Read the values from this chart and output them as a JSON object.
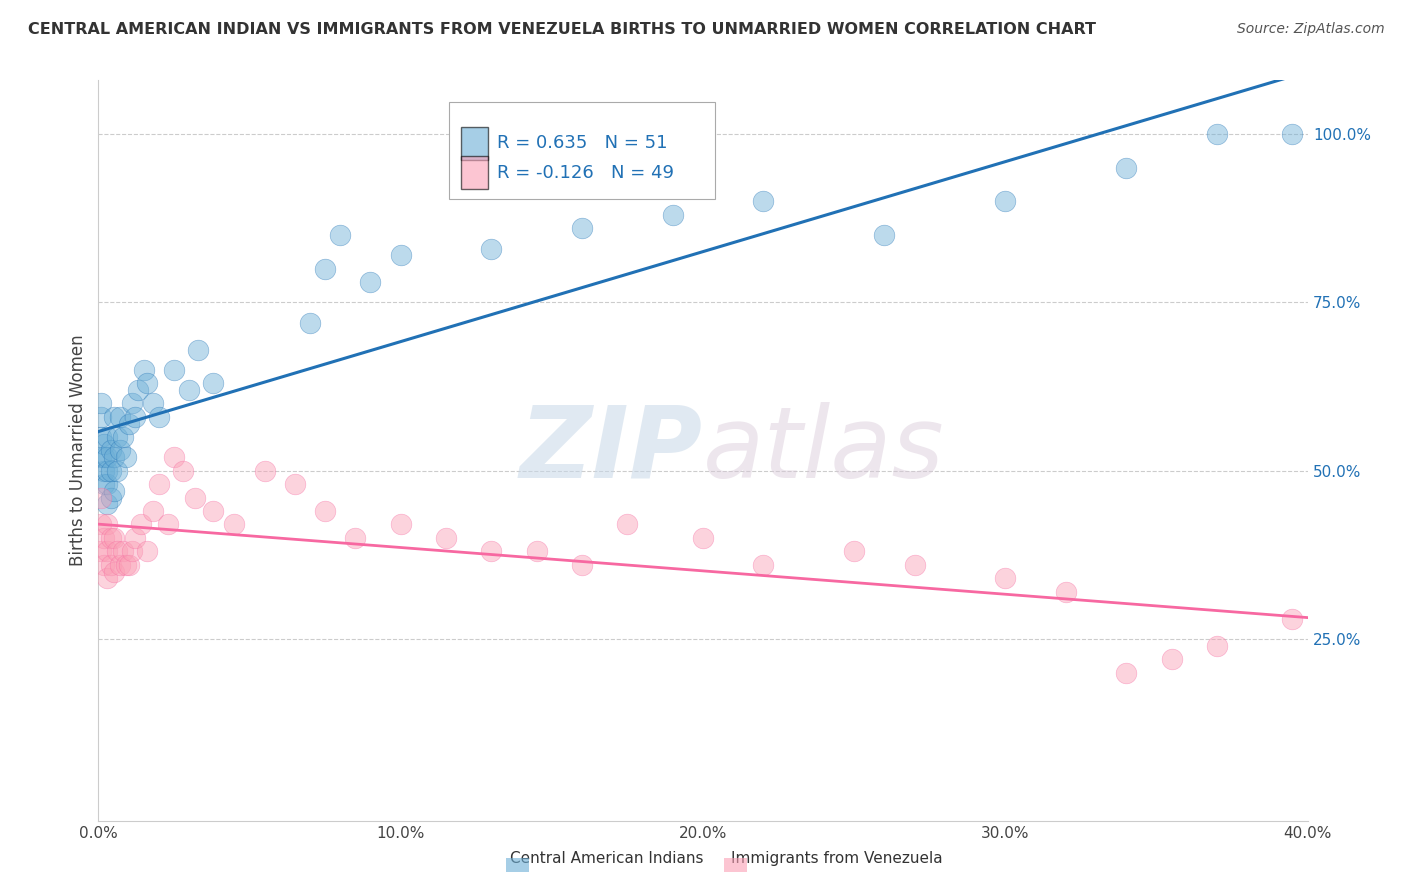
{
  "title": "CENTRAL AMERICAN INDIAN VS IMMIGRANTS FROM VENEZUELA BIRTHS TO UNMARRIED WOMEN CORRELATION CHART",
  "source": "Source: ZipAtlas.com",
  "ylabel": "Births to Unmarried Women",
  "xlim": [
    0.0,
    0.4
  ],
  "ylim": [
    -0.02,
    1.08
  ],
  "xtick_labels": [
    "0.0%",
    "10.0%",
    "20.0%",
    "30.0%",
    "40.0%"
  ],
  "xtick_vals": [
    0.0,
    0.1,
    0.2,
    0.3,
    0.4
  ],
  "ytick_labels_right": [
    "25.0%",
    "50.0%",
    "75.0%",
    "100.0%"
  ],
  "ytick_vals_right": [
    0.25,
    0.5,
    0.75,
    1.0
  ],
  "blue_color": "#6BAED6",
  "pink_color": "#FA9FB5",
  "blue_line_color": "#2171B5",
  "pink_line_color": "#F768A1",
  "legend_R_blue": "0.635",
  "legend_N_blue": "51",
  "legend_R_pink": "-0.126",
  "legend_N_pink": "49",
  "legend_label_blue": "Central American Indians",
  "legend_label_pink": "Immigrants from Venezuela",
  "watermark_zip": "ZIP",
  "watermark_atlas": "atlas",
  "blue_x": [
    0.001,
    0.001,
    0.001,
    0.001,
    0.002,
    0.002,
    0.002,
    0.002,
    0.003,
    0.003,
    0.003,
    0.003,
    0.003,
    0.004,
    0.004,
    0.004,
    0.005,
    0.005,
    0.005,
    0.006,
    0.006,
    0.007,
    0.007,
    0.008,
    0.009,
    0.01,
    0.011,
    0.012,
    0.013,
    0.015,
    0.016,
    0.018,
    0.02,
    0.025,
    0.03,
    0.033,
    0.038,
    0.07,
    0.075,
    0.08,
    0.09,
    0.1,
    0.13,
    0.16,
    0.19,
    0.22,
    0.26,
    0.3,
    0.34,
    0.37,
    0.395
  ],
  "blue_y": [
    0.52,
    0.55,
    0.58,
    0.6,
    0.48,
    0.5,
    0.52,
    0.54,
    0.45,
    0.48,
    0.5,
    0.52,
    0.55,
    0.46,
    0.5,
    0.53,
    0.47,
    0.52,
    0.58,
    0.5,
    0.55,
    0.53,
    0.58,
    0.55,
    0.52,
    0.57,
    0.6,
    0.58,
    0.62,
    0.65,
    0.63,
    0.6,
    0.58,
    0.65,
    0.62,
    0.68,
    0.63,
    0.72,
    0.8,
    0.85,
    0.78,
    0.82,
    0.83,
    0.86,
    0.88,
    0.9,
    0.85,
    0.9,
    0.95,
    1.0,
    1.0
  ],
  "pink_x": [
    0.001,
    0.001,
    0.001,
    0.002,
    0.002,
    0.003,
    0.003,
    0.003,
    0.004,
    0.004,
    0.005,
    0.005,
    0.006,
    0.007,
    0.008,
    0.009,
    0.01,
    0.011,
    0.012,
    0.014,
    0.016,
    0.018,
    0.02,
    0.023,
    0.025,
    0.028,
    0.032,
    0.038,
    0.045,
    0.055,
    0.065,
    0.075,
    0.085,
    0.1,
    0.115,
    0.13,
    0.145,
    0.16,
    0.175,
    0.2,
    0.22,
    0.25,
    0.27,
    0.3,
    0.32,
    0.34,
    0.355,
    0.37,
    0.395
  ],
  "pink_y": [
    0.38,
    0.42,
    0.46,
    0.36,
    0.4,
    0.34,
    0.38,
    0.42,
    0.36,
    0.4,
    0.35,
    0.4,
    0.38,
    0.36,
    0.38,
    0.36,
    0.36,
    0.38,
    0.4,
    0.42,
    0.38,
    0.44,
    0.48,
    0.42,
    0.52,
    0.5,
    0.46,
    0.44,
    0.42,
    0.5,
    0.48,
    0.44,
    0.4,
    0.42,
    0.4,
    0.38,
    0.38,
    0.36,
    0.42,
    0.4,
    0.36,
    0.38,
    0.36,
    0.34,
    0.32,
    0.2,
    0.22,
    0.24,
    0.28
  ]
}
